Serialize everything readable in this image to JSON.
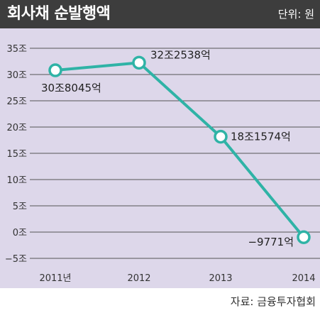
{
  "header": {
    "title": "회사채 순발행액",
    "unit": "단위: 원"
  },
  "footer": {
    "source": "자료: 금융투자협회"
  },
  "colors": {
    "header_bg": "#3d3d3d",
    "plot_bg": "#ddd7ea",
    "line": "#2fb3a6",
    "grid": "#555555"
  },
  "chart_data": {
    "type": "line",
    "title": "회사채 순발행액",
    "x": [
      "2011년",
      "2012",
      "2013",
      "2014"
    ],
    "series": [
      {
        "values": [
          30.8045,
          32.2538,
          18.1574,
          -0.9771
        ]
      }
    ],
    "data_labels": [
      "30조8045억",
      "32조2538억",
      "18조1574억",
      "−9771억"
    ],
    "yticks": [
      {
        "value": 35,
        "label": "35조"
      },
      {
        "value": 30,
        "label": "30조"
      },
      {
        "value": 25,
        "label": "25조"
      },
      {
        "value": 20,
        "label": "20조"
      },
      {
        "value": 15,
        "label": "15조"
      },
      {
        "value": 10,
        "label": "10조"
      },
      {
        "value": 5,
        "label": "5조"
      },
      {
        "value": 0,
        "label": "0조"
      },
      {
        "value": -5,
        "label": "−5조"
      }
    ],
    "ylim": [
      -5,
      35
    ],
    "grid": true,
    "legend": "none"
  }
}
